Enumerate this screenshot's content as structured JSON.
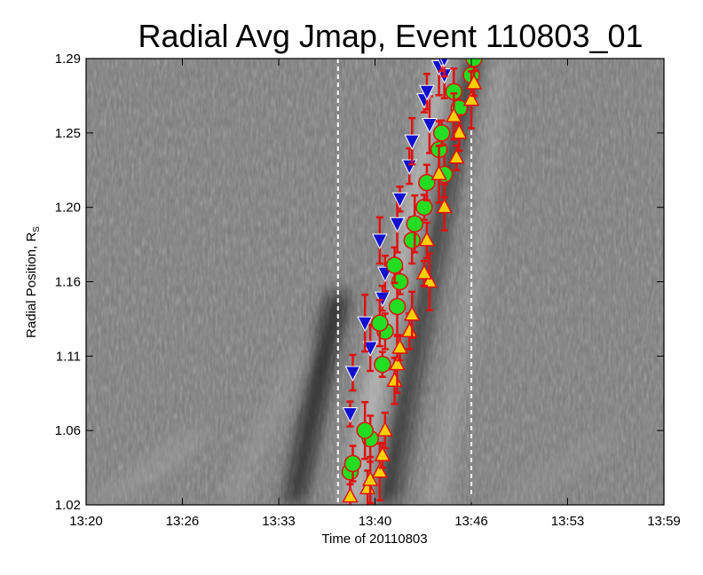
{
  "chart_data": {
    "type": "scatter",
    "title": "Radial Avg Jmap, Event 110803_01",
    "xlabel": "Time of 20110803",
    "ylabel": "Radial Position, R",
    "ylabel_subscript": "S",
    "x_tick_labels": [
      "13:20",
      "13:26",
      "13:33",
      "13:40",
      "13:46",
      "13:53",
      "13:59"
    ],
    "y_tick_labels": [
      "1.02",
      "1.06",
      "1.11",
      "1.16",
      "1.20",
      "1.25",
      "1.29"
    ],
    "xlim": [
      "13:20",
      "13:59"
    ],
    "ylim": [
      1.02,
      1.29
    ],
    "vertical_markers": [
      "13:37",
      "13:46"
    ],
    "background": "grayscale j-map image",
    "colors": {
      "front": "#1010d0",
      "peak": "#22dd22",
      "back": "#ffd000",
      "errorbar": "#e01010",
      "marker_line": "#ffffff"
    },
    "series": [
      {
        "marker": "inverted-triangle",
        "color": "#1010d0",
        "x": [
          "13:38",
          "13:38",
          "13:39",
          "13:39",
          "13:40",
          "13:40",
          "13:40",
          "13:41",
          "13:41",
          "13:42",
          "13:42",
          "13:43",
          "13:43",
          "13:43",
          "13:44",
          "13:44",
          "13:44",
          "13:44"
        ],
        "y": [
          1.075,
          1.1,
          1.115,
          1.13,
          1.145,
          1.16,
          1.18,
          1.19,
          1.205,
          1.225,
          1.24,
          1.25,
          1.265,
          1.27,
          1.28,
          1.285,
          1.29,
          1.29
        ]
      },
      {
        "marker": "circle",
        "color": "#22dd22",
        "x": [
          "13:38",
          "13:38",
          "13:39",
          "13:39",
          "13:40",
          "13:40",
          "13:40",
          "13:41",
          "13:41",
          "13:41",
          "13:42",
          "13:42",
          "13:43",
          "13:43",
          "13:44",
          "13:44",
          "13:44",
          "13:45",
          "13:45",
          "13:46",
          "13:46"
        ],
        "y": [
          1.04,
          1.045,
          1.06,
          1.065,
          1.105,
          1.125,
          1.13,
          1.14,
          1.155,
          1.165,
          1.18,
          1.19,
          1.2,
          1.215,
          1.22,
          1.235,
          1.245,
          1.26,
          1.27,
          1.28,
          1.29
        ]
      },
      {
        "marker": "triangle",
        "color": "#ffd000",
        "x": [
          "13:38",
          "13:39",
          "13:39",
          "13:40",
          "13:40",
          "13:40",
          "13:41",
          "13:41",
          "13:41",
          "13:42",
          "13:42",
          "13:43",
          "13:43",
          "13:43",
          "13:44",
          "13:44",
          "13:45",
          "13:45",
          "13:45",
          "13:46",
          "13:46"
        ],
        "y": [
          1.025,
          1.03,
          1.035,
          1.04,
          1.05,
          1.065,
          1.095,
          1.105,
          1.115,
          1.125,
          1.135,
          1.155,
          1.16,
          1.18,
          1.2,
          1.22,
          1.23,
          1.245,
          1.255,
          1.265,
          1.275
        ]
      }
    ]
  }
}
